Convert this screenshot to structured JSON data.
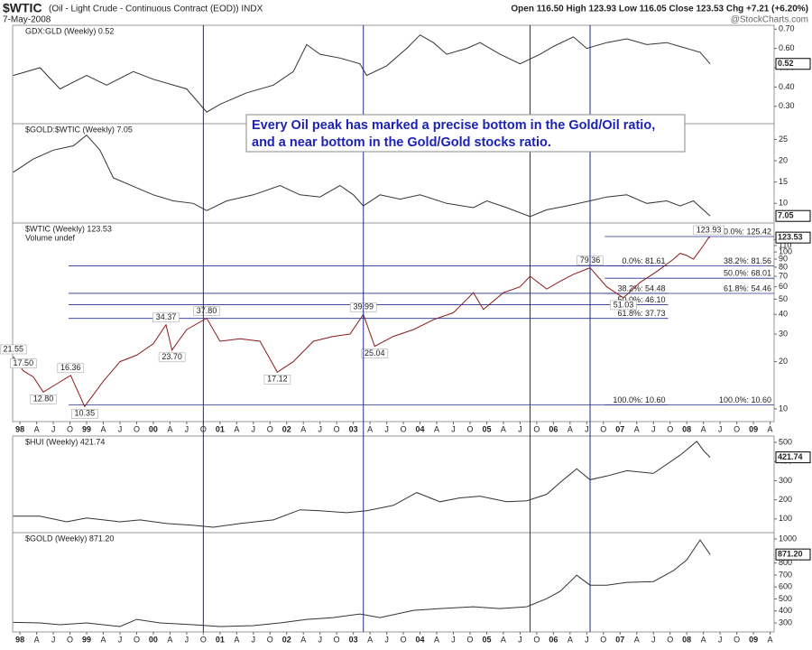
{
  "header": {
    "symbol": "$WTIC",
    "description": "(Oil - Light Crude - Continuous Contract (EOD)) INDX",
    "date": "7-May-2008",
    "quote": "Open 116.50 High 123.93 Low 116.05 Close 123.53 Chg +7.21 (+6.20%)",
    "source": "@StockCharts.com"
  },
  "annotation": {
    "lines": [
      "Every Oil peak has marked a precise bottom in the Gold/Oil ratio,",
      "and a near bottom in the Gold/Gold stocks ratio."
    ]
  },
  "event_lines": [
    2000.75,
    2003.15,
    2005.65,
    2006.55
  ],
  "chart_data": [
    {
      "type": "line",
      "title": "GDX:GLD (Weekly) 0.52",
      "color": "#333333",
      "last_label": "0.52",
      "xlim": [
        1997.89,
        2009.31
      ],
      "ylim": [
        0.21,
        0.72
      ],
      "yticks": [
        {
          "value": 0.3,
          "label": "0.30"
        },
        {
          "value": 0.4,
          "label": "0.40"
        },
        {
          "value": 0.5,
          "label": "0.50"
        },
        {
          "value": 0.6,
          "label": "0.60"
        },
        {
          "value": 0.7,
          "label": "0.70"
        }
      ],
      "x": [
        1997.9,
        1998.3,
        1998.6,
        1999.0,
        1999.3,
        1999.7,
        2000.0,
        2000.5,
        2000.8,
        2001.0,
        2001.4,
        2001.8,
        2002.1,
        2002.3,
        2002.5,
        2002.8,
        2003.1,
        2003.2,
        2003.5,
        2003.8,
        2004.0,
        2004.2,
        2004.4,
        2004.7,
        2004.9,
        2005.2,
        2005.5,
        2005.8,
        2006.0,
        2006.3,
        2006.5,
        2006.8,
        2007.1,
        2007.4,
        2007.7,
        2007.9,
        2008.2,
        2008.35
      ],
      "values": [
        0.46,
        0.5,
        0.39,
        0.46,
        0.41,
        0.48,
        0.44,
        0.39,
        0.27,
        0.31,
        0.37,
        0.41,
        0.48,
        0.62,
        0.57,
        0.55,
        0.52,
        0.46,
        0.51,
        0.6,
        0.67,
        0.63,
        0.57,
        0.6,
        0.63,
        0.57,
        0.52,
        0.57,
        0.61,
        0.66,
        0.6,
        0.63,
        0.65,
        0.62,
        0.63,
        0.61,
        0.58,
        0.52
      ]
    },
    {
      "type": "line",
      "title": "$GOLD:$WTIC (Weekly) 7.05",
      "color": "#333333",
      "last_label": "7.05",
      "xlim": [
        1997.89,
        2009.31
      ],
      "ylim": [
        5.4,
        28.7
      ],
      "yticks": [
        10,
        15,
        20,
        25
      ],
      "x": [
        1997.9,
        1998.2,
        1998.5,
        1998.8,
        1999.0,
        1999.2,
        1999.4,
        1999.7,
        2000.0,
        2000.3,
        2000.6,
        2000.8,
        2001.1,
        2001.5,
        2001.9,
        2002.2,
        2002.5,
        2002.8,
        2003.0,
        2003.15,
        2003.4,
        2003.7,
        2004.0,
        2004.4,
        2004.8,
        2005.0,
        2005.3,
        2005.65,
        2005.9,
        2006.2,
        2006.55,
        2006.8,
        2007.1,
        2007.4,
        2007.7,
        2007.9,
        2008.1,
        2008.35
      ],
      "values": [
        17.3,
        20.4,
        22.5,
        23.5,
        26,
        22.5,
        16,
        14,
        12,
        10.6,
        10,
        8.3,
        10.6,
        12,
        14.2,
        12,
        11.5,
        14.2,
        12,
        9.4,
        12,
        11,
        12,
        10,
        9,
        10.6,
        9,
        6.9,
        8.5,
        9.4,
        10.6,
        11.5,
        12,
        10,
        10.6,
        9.4,
        10.6,
        7.05
      ]
    },
    {
      "type": "line",
      "title": "$WTIC (Weekly) 123.53",
      "legend_note": "Volume undef",
      "color": "#8b1a1a",
      "last_label": "123.53",
      "log": true,
      "xlim": [
        1997.89,
        2009.31
      ],
      "ylim": [
        8.3,
        153
      ],
      "yticks": [
        10,
        20,
        30,
        40,
        50,
        60,
        70,
        80,
        90,
        100,
        110,
        120
      ],
      "xticks": [
        {
          "value": 1998,
          "label": "98"
        },
        {
          "value": 1998.25,
          "label": "A"
        },
        {
          "value": 1998.5,
          "label": "J"
        },
        {
          "value": 1998.75,
          "label": "O"
        },
        {
          "value": 1999,
          "label": "99"
        },
        {
          "value": 1999.25,
          "label": "A"
        },
        {
          "value": 1999.5,
          "label": "J"
        },
        {
          "value": 1999.75,
          "label": "O"
        },
        {
          "value": 2000,
          "label": "00"
        },
        {
          "value": 2000.25,
          "label": "A"
        },
        {
          "value": 2000.5,
          "label": "J"
        },
        {
          "value": 2000.75,
          "label": "O"
        },
        {
          "value": 2001,
          "label": "01"
        },
        {
          "value": 2001.25,
          "label": "A"
        },
        {
          "value": 2001.5,
          "label": "J"
        },
        {
          "value": 2001.75,
          "label": "O"
        },
        {
          "value": 2002,
          "label": "02"
        },
        {
          "value": 2002.25,
          "label": "A"
        },
        {
          "value": 2002.5,
          "label": "J"
        },
        {
          "value": 2002.75,
          "label": "O"
        },
        {
          "value": 2003,
          "label": "03"
        },
        {
          "value": 2003.25,
          "label": "A"
        },
        {
          "value": 2003.5,
          "label": "J"
        },
        {
          "value": 2003.75,
          "label": "O"
        },
        {
          "value": 2004,
          "label": "04"
        },
        {
          "value": 2004.25,
          "label": "A"
        },
        {
          "value": 2004.5,
          "label": "J"
        },
        {
          "value": 2004.75,
          "label": "O"
        },
        {
          "value": 2005,
          "label": "05"
        },
        {
          "value": 2005.25,
          "label": "A"
        },
        {
          "value": 2005.5,
          "label": "J"
        },
        {
          "value": 2005.75,
          "label": "O"
        },
        {
          "value": 2006,
          "label": "06"
        },
        {
          "value": 2006.25,
          "label": "A"
        },
        {
          "value": 2006.5,
          "label": "J"
        },
        {
          "value": 2006.75,
          "label": "O"
        },
        {
          "value": 2007,
          "label": "07"
        },
        {
          "value": 2007.25,
          "label": "A"
        },
        {
          "value": 2007.5,
          "label": "J"
        },
        {
          "value": 2007.75,
          "label": "O"
        },
        {
          "value": 2008,
          "label": "08"
        },
        {
          "value": 2008.25,
          "label": "A"
        },
        {
          "value": 2008.5,
          "label": "J"
        },
        {
          "value": 2008.75,
          "label": "O"
        },
        {
          "value": 2009,
          "label": "09"
        },
        {
          "value": 2009.25,
          "label": "A"
        }
      ],
      "x": [
        1997.9,
        1998.05,
        1998.2,
        1998.35,
        1998.5,
        1998.76,
        1998.97,
        1999.25,
        1999.5,
        1999.75,
        2000.0,
        2000.19,
        2000.28,
        2000.5,
        2000.8,
        2001.0,
        2001.3,
        2001.6,
        2001.86,
        2002.1,
        2002.4,
        2002.7,
        2002.95,
        2003.15,
        2003.32,
        2003.6,
        2003.9,
        2004.2,
        2004.5,
        2004.8,
        2004.95,
        2005.25,
        2005.5,
        2005.65,
        2005.9,
        2006.1,
        2006.3,
        2006.55,
        2006.8,
        2007.05,
        2007.3,
        2007.55,
        2007.8,
        2007.9,
        2008.0,
        2008.1,
        2008.25,
        2008.33,
        2008.35
      ],
      "values": [
        21.55,
        17.5,
        16,
        12.8,
        14,
        16.36,
        10.35,
        15,
        20,
        22,
        26,
        34.37,
        23.7,
        32,
        37.8,
        27,
        28,
        27,
        17.12,
        20,
        27,
        29,
        30,
        39.99,
        25.04,
        29,
        32,
        37,
        41,
        55,
        43,
        55,
        60,
        70,
        58,
        65,
        72,
        79.36,
        60,
        51.03,
        64,
        75,
        90,
        98,
        95,
        90,
        110,
        123.93,
        123.53
      ],
      "price_labels": [
        {
          "x": 1997.9,
          "value": 21.55,
          "label": "21.55"
        },
        {
          "x": 1998.05,
          "value": 17.5,
          "label": "17.50"
        },
        {
          "x": 1998.35,
          "value": 12.8,
          "label": "12.80"
        },
        {
          "x": 1998.76,
          "value": 16.36,
          "label": "16.36"
        },
        {
          "x": 1998.97,
          "value": 10.35,
          "label": "10.35"
        },
        {
          "x": 2000.19,
          "value": 34.37,
          "label": "34.37"
        },
        {
          "x": 2000.28,
          "value": 23.7,
          "label": "23.70"
        },
        {
          "x": 2000.8,
          "value": 37.8,
          "label": "37.80"
        },
        {
          "x": 2001.86,
          "value": 17.12,
          "label": "17.12"
        },
        {
          "x": 2003.15,
          "value": 39.99,
          "label": "39.99"
        },
        {
          "x": 2003.32,
          "value": 25.04,
          "label": "25.04"
        },
        {
          "x": 2006.55,
          "value": 79.36,
          "label": "79.36"
        },
        {
          "x": 2007.05,
          "value": 51.03,
          "label": "51.03"
        },
        {
          "x": 2008.33,
          "value": 123.93,
          "label": "123.93"
        }
      ],
      "fib": [
        {
          "from": 1998.73,
          "to": 2007.72,
          "levels": [
            {
              "value": 81.61,
              "label": "0.0%: 81.61"
            },
            {
              "value": 54.48,
              "label": "38.2%: 54.48"
            },
            {
              "value": 46.1,
              "label": "50.0%: 46.10"
            },
            {
              "value": 37.73,
              "label": "61.8%: 37.73"
            },
            {
              "value": 10.6,
              "label": "100.0%: 10.60"
            }
          ]
        },
        {
          "from": 2006.77,
          "to": 2009.31,
          "levels": [
            {
              "value": 125.42,
              "label": "0.0%: 125.42"
            },
            {
              "value": 81.56,
              "label": "38.2%: 81.56"
            },
            {
              "value": 68.01,
              "label": "50.0%: 68.01"
            },
            {
              "value": 54.46,
              "label": "61.8%: 54.46"
            },
            {
              "value": 10.6,
              "label": "100.0%: 10.60"
            }
          ]
        }
      ]
    },
    {
      "type": "line",
      "title": "$HUI (Weekly) 421.74",
      "color": "#333333",
      "last_label": "421.74",
      "xlim": [
        1997.89,
        2009.31
      ],
      "ylim": [
        28.6,
        533
      ],
      "yticks": [
        100,
        200,
        300,
        400,
        500
      ],
      "x": [
        1997.9,
        1998.3,
        1998.7,
        1999.0,
        1999.5,
        1999.8,
        2000.2,
        2000.6,
        2000.9,
        2001.3,
        2001.8,
        2002.2,
        2002.5,
        2002.9,
        2003.2,
        2003.6,
        2003.95,
        2004.3,
        2004.6,
        2004.9,
        2005.3,
        2005.6,
        2005.9,
        2006.1,
        2006.35,
        2006.55,
        2006.8,
        2007.1,
        2007.5,
        2007.9,
        2008.15,
        2008.25,
        2008.35
      ],
      "values": [
        115,
        115,
        85,
        105,
        85,
        95,
        76,
        67,
        57,
        76,
        95,
        148,
        143,
        133,
        143,
        171,
        238,
        190,
        210,
        219,
        190,
        195,
        229,
        290,
        362,
        305,
        324,
        352,
        338,
        433,
        505,
        457,
        421.74
      ]
    },
    {
      "type": "line",
      "title": "$GOLD (Weekly) 871.20",
      "color": "#333333",
      "last_label": "871.20",
      "xlim": [
        1997.89,
        2009.31
      ],
      "ylim": [
        225,
        1053
      ],
      "yticks": [
        300,
        400,
        500,
        600,
        700,
        800,
        1000
      ],
      "xticks": [
        {
          "value": 1998,
          "label": "98"
        },
        {
          "value": 1998.25,
          "label": "A"
        },
        {
          "value": 1998.5,
          "label": "J"
        },
        {
          "value": 1998.75,
          "label": "O"
        },
        {
          "value": 1999,
          "label": "99"
        },
        {
          "value": 1999.25,
          "label": "A"
        },
        {
          "value": 1999.5,
          "label": "J"
        },
        {
          "value": 1999.75,
          "label": "O"
        },
        {
          "value": 2000,
          "label": "00"
        },
        {
          "value": 2000.25,
          "label": "A"
        },
        {
          "value": 2000.5,
          "label": "J"
        },
        {
          "value": 2000.75,
          "label": "O"
        },
        {
          "value": 2001,
          "label": "01"
        },
        {
          "value": 2001.25,
          "label": "A"
        },
        {
          "value": 2001.5,
          "label": "J"
        },
        {
          "value": 2001.75,
          "label": "O"
        },
        {
          "value": 2002,
          "label": "02"
        },
        {
          "value": 2002.25,
          "label": "A"
        },
        {
          "value": 2002.5,
          "label": "J"
        },
        {
          "value": 2002.75,
          "label": "O"
        },
        {
          "value": 2003,
          "label": "03"
        },
        {
          "value": 2003.25,
          "label": "A"
        },
        {
          "value": 2003.5,
          "label": "J"
        },
        {
          "value": 2003.75,
          "label": "O"
        },
        {
          "value": 2004,
          "label": "04"
        },
        {
          "value": 2004.25,
          "label": "A"
        },
        {
          "value": 2004.5,
          "label": "J"
        },
        {
          "value": 2004.75,
          "label": "O"
        },
        {
          "value": 2005,
          "label": "05"
        },
        {
          "value": 2005.25,
          "label": "A"
        },
        {
          "value": 2005.5,
          "label": "J"
        },
        {
          "value": 2005.75,
          "label": "O"
        },
        {
          "value": 2006,
          "label": "06"
        },
        {
          "value": 2006.25,
          "label": "A"
        },
        {
          "value": 2006.5,
          "label": "J"
        },
        {
          "value": 2006.75,
          "label": "O"
        },
        {
          "value": 2007,
          "label": "07"
        },
        {
          "value": 2007.25,
          "label": "A"
        },
        {
          "value": 2007.5,
          "label": "J"
        },
        {
          "value": 2007.75,
          "label": "O"
        },
        {
          "value": 2008,
          "label": "08"
        },
        {
          "value": 2008.25,
          "label": "A"
        },
        {
          "value": 2008.5,
          "label": "J"
        },
        {
          "value": 2008.75,
          "label": "O"
        },
        {
          "value": 2009,
          "label": "09"
        },
        {
          "value": 2009.25,
          "label": "A"
        }
      ],
      "x": [
        1997.9,
        1998.3,
        1998.6,
        1999.0,
        1999.5,
        1999.75,
        2000.1,
        2000.6,
        2001.0,
        2001.5,
        2001.9,
        2002.3,
        2002.7,
        2003.1,
        2003.4,
        2003.9,
        2004.3,
        2004.8,
        2005.2,
        2005.6,
        2005.9,
        2006.1,
        2006.35,
        2006.55,
        2006.8,
        2007.1,
        2007.5,
        2007.8,
        2008.0,
        2008.2,
        2008.35
      ],
      "values": [
        305,
        300,
        285,
        300,
        270,
        330,
        300,
        285,
        270,
        278,
        300,
        330,
        345,
        375,
        345,
        405,
        420,
        435,
        420,
        435,
        503,
        563,
        698,
        615,
        615,
        638,
        645,
        736,
        826,
        992,
        871.2
      ]
    }
  ]
}
